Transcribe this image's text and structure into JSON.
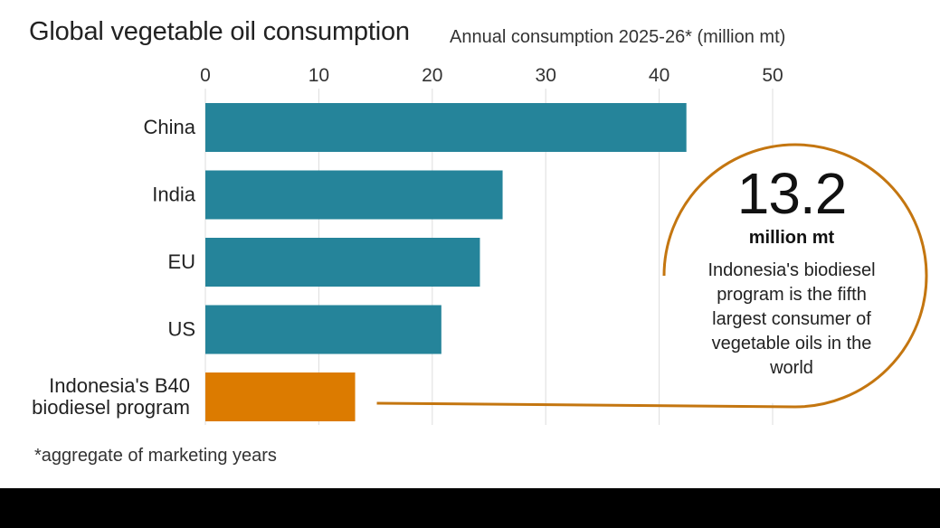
{
  "title": "Global vegetable oil consumption",
  "subtitle": "Annual consumption 2025-26* (million mt)",
  "footnote": "*aggregate of marketing years",
  "colors": {
    "bar_default": "#25849a",
    "bar_highlight": "#dc7b00",
    "callout_line": "#c47610",
    "grid": "#dddddd"
  },
  "chart_data": {
    "type": "bar",
    "orientation": "horizontal",
    "title": "Global vegetable oil consumption",
    "subtitle": "Annual consumption 2025-26* (million mt)",
    "xlabel": "Annual consumption 2025-26* (million mt)",
    "ylabel": "",
    "xlim": [
      0,
      50
    ],
    "x_ticks": [
      0,
      10,
      20,
      30,
      40,
      50
    ],
    "grid": true,
    "categories": [
      "China",
      "India",
      "EU",
      "US",
      "Indonesia's B40\nbiodiesel program"
    ],
    "category_lines": [
      [
        "China"
      ],
      [
        "India"
      ],
      [
        "EU"
      ],
      [
        "US"
      ],
      [
        "Indonesia's B40",
        "biodiesel program"
      ]
    ],
    "values": [
      42.4,
      26.2,
      24.2,
      20.8,
      13.2
    ],
    "highlight_index": 4
  },
  "callout": {
    "value": "13.2",
    "unit": "million mt",
    "text": "Indonesia's biodiesel program is the fifth largest consumer of vegetable oils in the world"
  }
}
